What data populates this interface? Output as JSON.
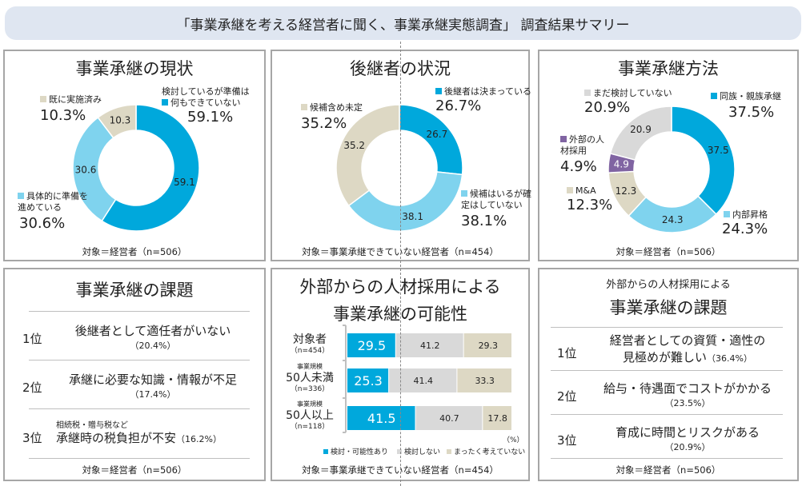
{
  "header": {
    "title": "「事業承継を考える経営者に聞く、事業承継実態調査」 調査結果サマリー"
  },
  "colors": {
    "dark_blue": "#00a8dc",
    "light_blue": "#7fd3ee",
    "beige": "#ddd8c4",
    "gray": "#d9d9d9",
    "purple": "#8064a2"
  },
  "chart_data": [
    {
      "type": "pie",
      "title": "事業承継の現状",
      "donut": true,
      "footnote": "対象＝経営者（n=506）",
      "slices": [
        {
          "name": "検討しているが準備は何もできていない",
          "value": 59.1,
          "color": "#00a8dc",
          "pct": "59.1%"
        },
        {
          "name": "具体的に準備を進めている",
          "value": 30.6,
          "color": "#7fd3ee",
          "pct": "30.6%"
        },
        {
          "name": "既に実施済み",
          "value": 10.3,
          "color": "#ddd8c4",
          "pct": "10.3%"
        }
      ]
    },
    {
      "type": "pie",
      "title": "後継者の状況",
      "donut": true,
      "footnote": "対象＝事業承継できていない経営者（n=454）",
      "slices": [
        {
          "name": "後継者は決まっている",
          "value": 26.7,
          "color": "#00a8dc",
          "pct": "26.7%"
        },
        {
          "name": "候補はいるが確定はしていない",
          "value": 38.1,
          "color": "#7fd3ee",
          "pct": "38.1%"
        },
        {
          "name": "候補含め未定",
          "value": 35.2,
          "color": "#ddd8c4",
          "pct": "35.2%"
        }
      ]
    },
    {
      "type": "pie",
      "title": "事業承継方法",
      "donut": true,
      "footnote": "対象＝経営者（n=506）",
      "slices": [
        {
          "name": "同族・親族承継",
          "value": 37.5,
          "color": "#00a8dc",
          "pct": "37.5%"
        },
        {
          "name": "内部昇格",
          "value": 24.3,
          "color": "#7fd3ee",
          "pct": "24.3%"
        },
        {
          "name": "M&A",
          "value": 12.3,
          "color": "#ddd8c4",
          "pct": "12.3%"
        },
        {
          "name": "外部の人材採用",
          "value": 4.9,
          "color": "#8064a2",
          "pct": "4.9%"
        },
        {
          "name": "まだ検討していない",
          "value": 20.9,
          "color": "#d9d9d9",
          "pct": "20.9%"
        }
      ]
    },
    {
      "type": "bar",
      "stacked": true,
      "horizontal": true,
      "title_line1": "外部からの人材採用による",
      "title_line2": "事業承継の可能性",
      "unit": "（%）",
      "footnote": "対象＝事業承継できていない経営者（n=454）",
      "categories": [
        {
          "prefix": "",
          "label": "対象者",
          "n": "（n=454）"
        },
        {
          "prefix": "事業規模",
          "label": "50人未満",
          "n": "（n=336）"
        },
        {
          "prefix": "事業規模",
          "label": "50人以上",
          "n": "（n=118）"
        }
      ],
      "series": [
        {
          "name": "検討・可能性あり",
          "color": "#00a8dc",
          "values": [
            29.5,
            25.3,
            41.5
          ]
        },
        {
          "name": "検討しない",
          "color": "#d9d9d9",
          "values": [
            41.2,
            41.4,
            40.7
          ]
        },
        {
          "name": "まったく考えていない",
          "color": "#ddd8c4",
          "values": [
            29.3,
            33.3,
            17.8
          ]
        }
      ],
      "xlim": [
        0,
        100
      ]
    }
  ],
  "issues": {
    "title": "事業承継の課題",
    "footnote": "対象＝経営者（n=506）",
    "items": [
      {
        "rank": "1位",
        "text": "後継者として適任者がいない",
        "pct": "（20.4%）"
      },
      {
        "rank": "2位",
        "text": "承継に必要な知識・情報が不足",
        "pct": "（17.4%）"
      },
      {
        "rank": "3位",
        "note": "相続税・贈与税など",
        "text": "承継時の税負担が不安",
        "pct": "（16.2%）"
      }
    ]
  },
  "ext_issues": {
    "title_line1": "外部からの人材採用による",
    "title_line2": "事業承継の課題",
    "footnote": "対象＝経営者（n=506）",
    "items": [
      {
        "rank": "1位",
        "text": "経営者としての資質・適性の",
        "text2": "見極めが難しい",
        "pct": "（36.4%）"
      },
      {
        "rank": "2位",
        "text": "給与・待遇面でコストがかかる",
        "pct": "（23.5%）"
      },
      {
        "rank": "3位",
        "text": "育成に時間とリスクがある",
        "pct": "（20.9%）"
      }
    ]
  }
}
